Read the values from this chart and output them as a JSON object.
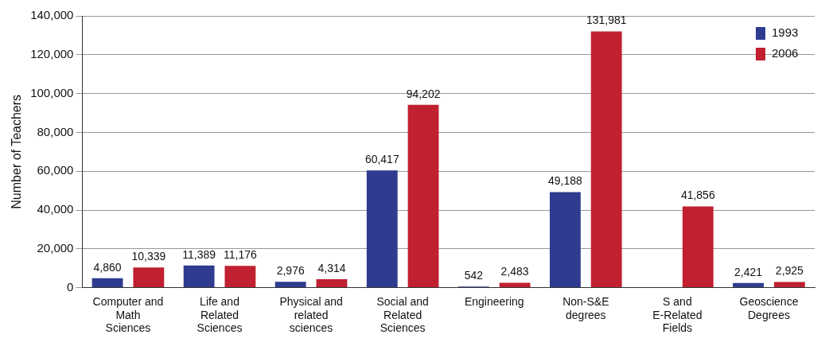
{
  "chart_data": {
    "type": "bar",
    "ylabel": "Number of Teachers",
    "categories": [
      "Computer and Math Sciences",
      "Life and Related Sciences",
      "Physical and related sciences",
      "Social and Related Sciences",
      "Engineering",
      "Non-S&E degrees",
      "S and E-Related Fields",
      "Geoscience Degrees"
    ],
    "series": [
      {
        "name": "1993",
        "color": "#2e3b8f",
        "values": [
          4860,
          11389,
          2976,
          60417,
          542,
          49188,
          null,
          2421
        ],
        "value_labels": [
          "4,860",
          "11,389",
          "2,976",
          "60,417",
          "542",
          "49,188",
          null,
          "2,421"
        ]
      },
      {
        "name": "2006",
        "color": "#c0202f",
        "values": [
          10339,
          11176,
          4314,
          94202,
          2483,
          131981,
          41856,
          2925
        ],
        "value_labels": [
          "10,339",
          "11,176",
          "4,314",
          "94,202",
          "2,483",
          "131,981",
          "41,856",
          "2,925"
        ]
      }
    ],
    "ylim": [
      0,
      140000
    ],
    "yticks": [
      0,
      {
        "value": 20000,
        "label": "20,000"
      },
      {
        "value": 40000,
        "label": "40,000"
      },
      {
        "value": 60000,
        "label": "60,000"
      },
      {
        "value": 80000,
        "label": "80,000"
      },
      {
        "value": 100000,
        "label": "100,000"
      },
      {
        "value": 120000,
        "label": "120,000"
      },
      {
        "value": 140000,
        "label": "140,000"
      }
    ],
    "grid": "y",
    "legend": "top right"
  }
}
